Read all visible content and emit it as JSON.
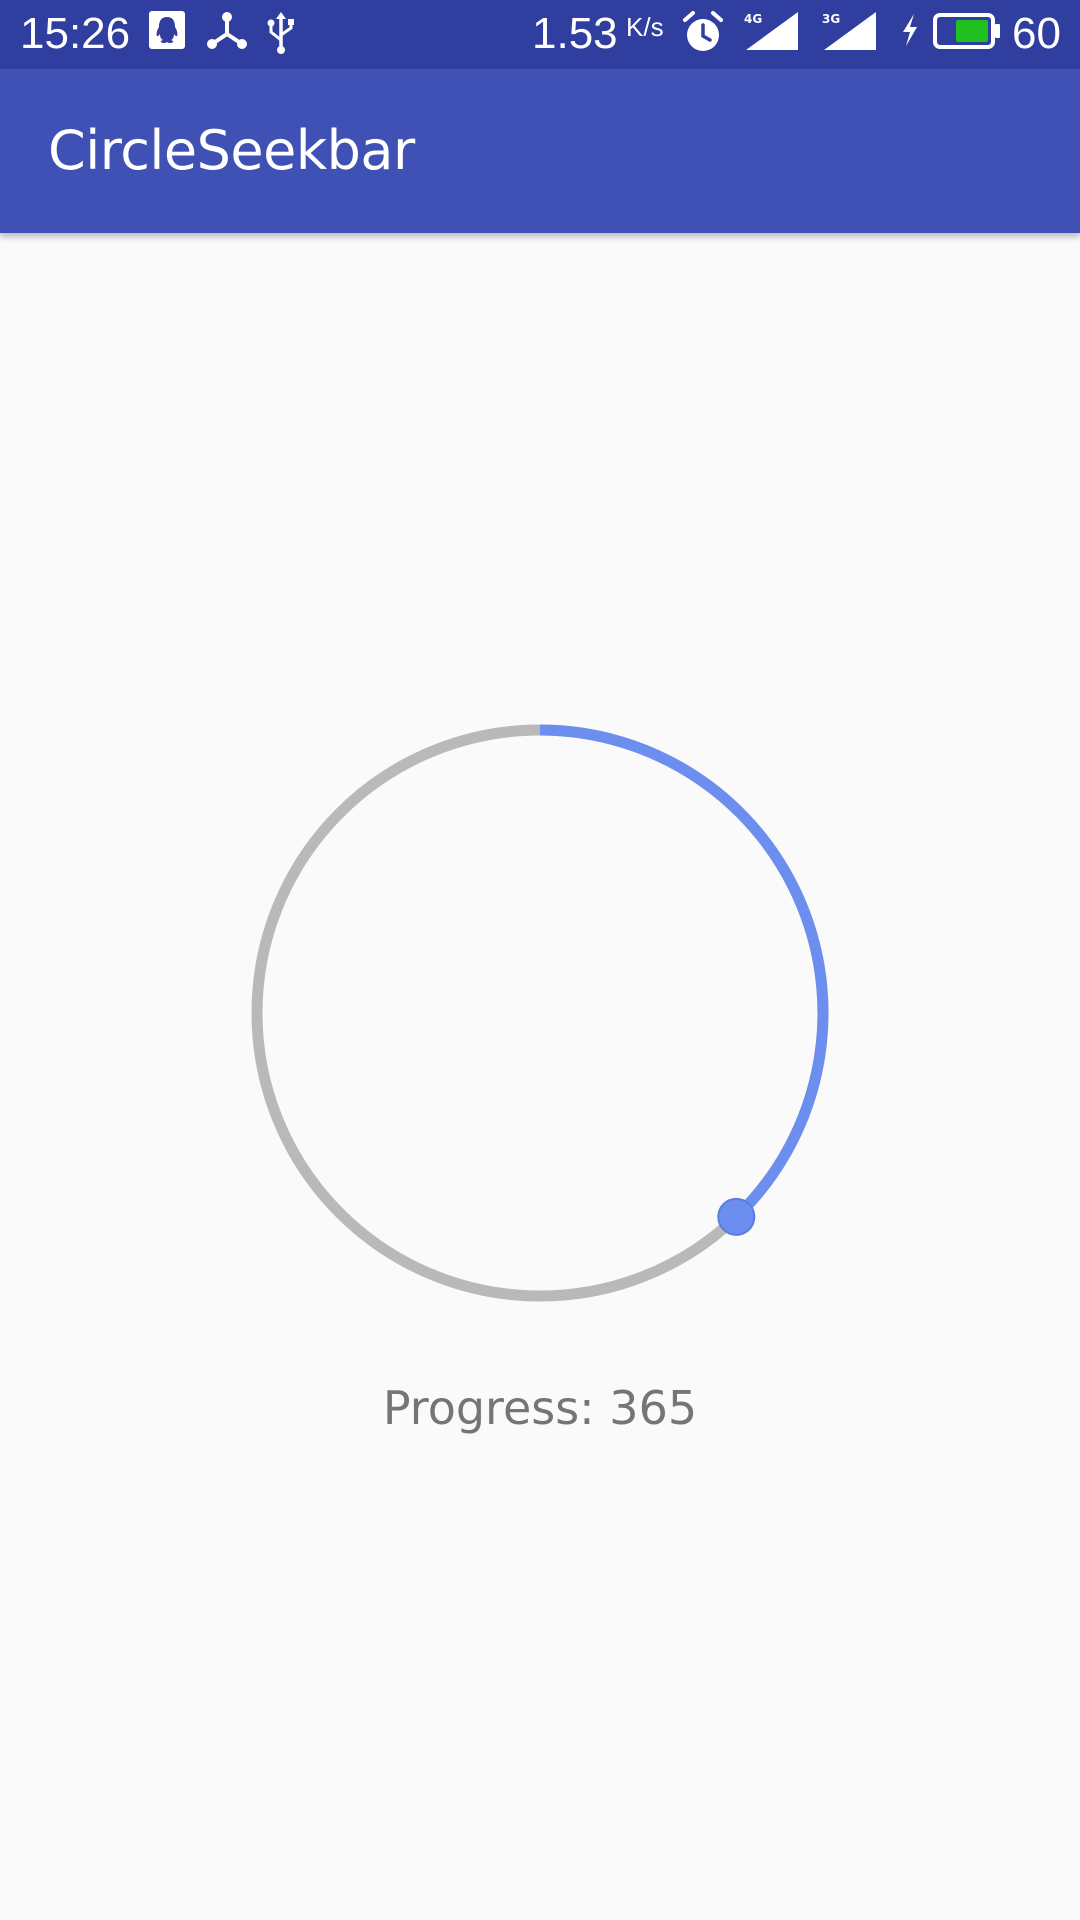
{
  "status_bar": {
    "time": "15:26",
    "net_speed_value": "1.53",
    "net_speed_unit": "K/s",
    "network_primary": "4G",
    "network_secondary": "3G",
    "battery_level": "60",
    "icons": [
      "qq-icon",
      "share-icon",
      "usb-icon",
      "alarm-icon",
      "signal-4g-icon",
      "signal-3g-icon",
      "charging-icon",
      "battery-icon"
    ],
    "colors": {
      "background": "#303F9F",
      "battery_fill": "#20C020"
    }
  },
  "app_bar": {
    "title": "CircleSeekbar",
    "color": "#3F51B5"
  },
  "seekbar": {
    "progress": 365,
    "progress_fraction": 0.378,
    "track_color": "#B9B9B9",
    "progress_color": "#6C8EEF",
    "thumb_color": "#6C8EEF"
  },
  "progress_label": {
    "prefix": "Progress: ",
    "text": "Progress: 365"
  }
}
